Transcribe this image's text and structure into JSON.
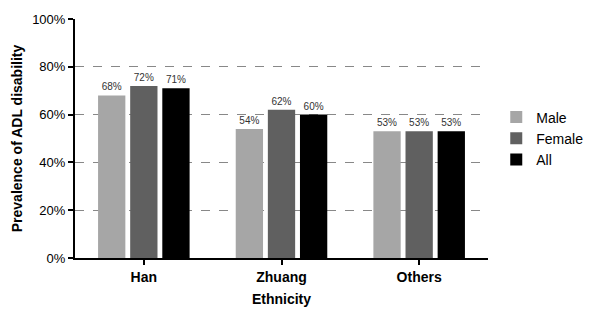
{
  "chart_data": {
    "type": "bar",
    "x_label": "Ethnicity",
    "y_label": "Prevalence of ADL disability",
    "categories": [
      "Han",
      "Zhuang",
      "Others"
    ],
    "series": [
      {
        "name": "Male",
        "color": "#a6a6a6",
        "values": [
          68,
          54,
          53
        ],
        "value_labels": [
          "68%",
          "54%",
          "53%"
        ]
      },
      {
        "name": "Female",
        "color": "#606060",
        "values": [
          72,
          62,
          53
        ],
        "value_labels": [
          "72%",
          "62%",
          "53%"
        ]
      },
      {
        "name": "All",
        "color": "#000000",
        "values": [
          71,
          60,
          53
        ],
        "value_labels": [
          "71%",
          "60%",
          "53%"
        ]
      }
    ],
    "ylim": [
      0,
      100
    ],
    "yticks": [
      {
        "value": 0,
        "label": "0%"
      },
      {
        "value": 20,
        "label": "20%"
      },
      {
        "value": 40,
        "label": "40%"
      },
      {
        "value": 60,
        "label": "60%"
      },
      {
        "value": 80,
        "label": "80%"
      },
      {
        "value": 100,
        "label": "100%"
      }
    ],
    "grid": true,
    "legend": "right",
    "data_labels": true
  }
}
